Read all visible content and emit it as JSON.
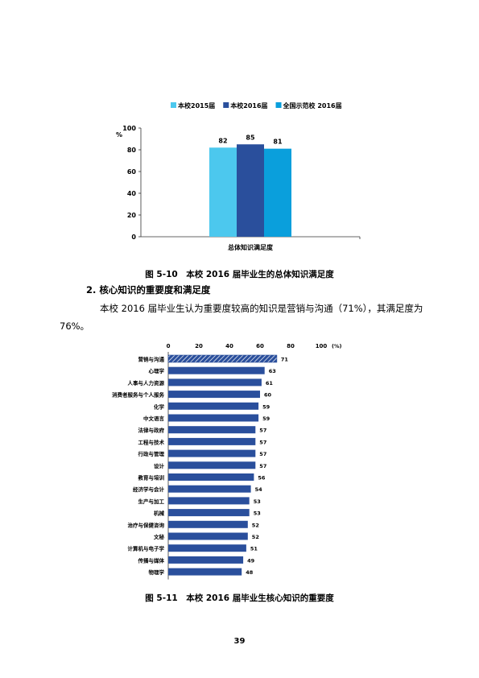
{
  "figure1": {
    "caption": "图 5-10　本校 2016 届毕业生的总体知识满足度",
    "chart_data": {
      "type": "bar",
      "categories": [
        "总体知识满足度"
      ],
      "series": [
        {
          "name": "本校2015届",
          "values": [
            82
          ],
          "color": "#4cc8ee"
        },
        {
          "name": "本校2016届",
          "values": [
            85
          ],
          "color": "#2a4f9c"
        },
        {
          "name": "全国示范校 2016届",
          "values": [
            81
          ],
          "color": "#0a9fdc"
        }
      ],
      "ylabel": "%",
      "ylim": [
        0,
        100
      ],
      "yticks": [
        "0",
        "20",
        "40",
        "60",
        "80",
        "100"
      ],
      "legend_position": "top"
    }
  },
  "section": {
    "heading": "2. 核心知识的重要度和满足度",
    "paragraph_line1": "本校 2016 届毕业生认为重要度较高的知识是营销与沟通（71%），其满足度为",
    "paragraph_line2": "76%。"
  },
  "figure2": {
    "caption": "图 5-11　本校 2016 届毕业生核心知识的重要度",
    "chart_data": {
      "type": "bar",
      "orientation": "horizontal",
      "categories": [
        "营销与沟通",
        "心理学",
        "人事与人力资源",
        "消费者服务与个人服务",
        "化学",
        "中文语言",
        "法律与政府",
        "工程与技术",
        "行政与管理",
        "设计",
        "教育与培训",
        "经济学与会计",
        "生产与加工",
        "机械",
        "治疗与保健咨询",
        "文秘",
        "计算机与电子学",
        "传播与媒体",
        "物理学"
      ],
      "values": [
        71,
        63,
        61,
        60,
        59,
        59,
        57,
        57,
        57,
        57,
        56,
        54,
        53,
        53,
        52,
        52,
        51,
        49,
        48
      ],
      "xlim": [
        0,
        100
      ],
      "xticks": [
        "0",
        "20",
        "40",
        "60",
        "80",
        "100"
      ],
      "xunit": "(%)",
      "highlight_index": 0,
      "color": "#2a4f9c"
    }
  },
  "page_number": "39"
}
